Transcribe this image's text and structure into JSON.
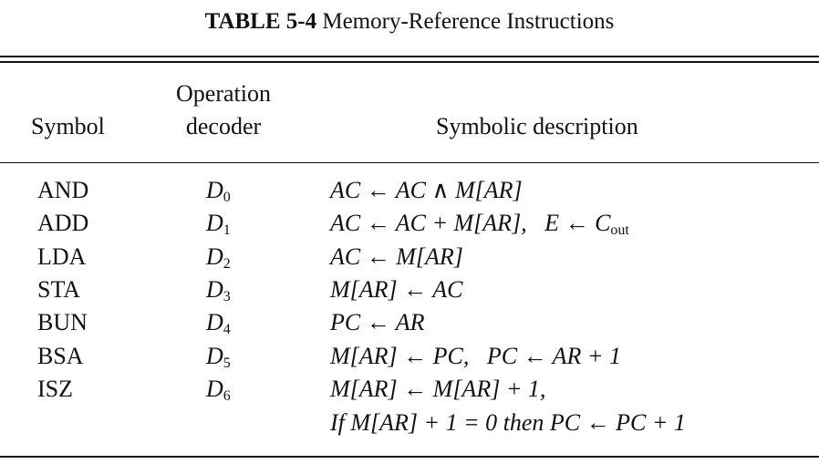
{
  "caption": {
    "number": "TABLE 5-4",
    "title": "Memory-Reference Instructions"
  },
  "headers": {
    "symbol": "Symbol",
    "operation_line1": "Operation",
    "operation_line2": "decoder",
    "description": "Symbolic description"
  },
  "rows": [
    {
      "symbol": "AND",
      "decoder_letter": "D",
      "decoder_sub": "0",
      "description": "AC ← AC ∧ M[AR]"
    },
    {
      "symbol": "ADD",
      "decoder_letter": "D",
      "decoder_sub": "1",
      "description": "AC ← AC + M[AR],   E ← C",
      "description_sub": "out"
    },
    {
      "symbol": "LDA",
      "decoder_letter": "D",
      "decoder_sub": "2",
      "description": "AC ← M[AR]"
    },
    {
      "symbol": "STA",
      "decoder_letter": "D",
      "decoder_sub": "3",
      "description": "M[AR] ← AC"
    },
    {
      "symbol": "BUN",
      "decoder_letter": "D",
      "decoder_sub": "4",
      "description": "PC ← AR"
    },
    {
      "symbol": "BSA",
      "decoder_letter": "D",
      "decoder_sub": "5",
      "description": "M[AR] ← PC,   PC ← AR + 1"
    },
    {
      "symbol": "ISZ",
      "decoder_letter": "D",
      "decoder_sub": "6",
      "description": "M[AR] ← M[AR] + 1,",
      "description_line2": "If M[AR] + 1 = 0 then PC ← PC + 1"
    }
  ]
}
